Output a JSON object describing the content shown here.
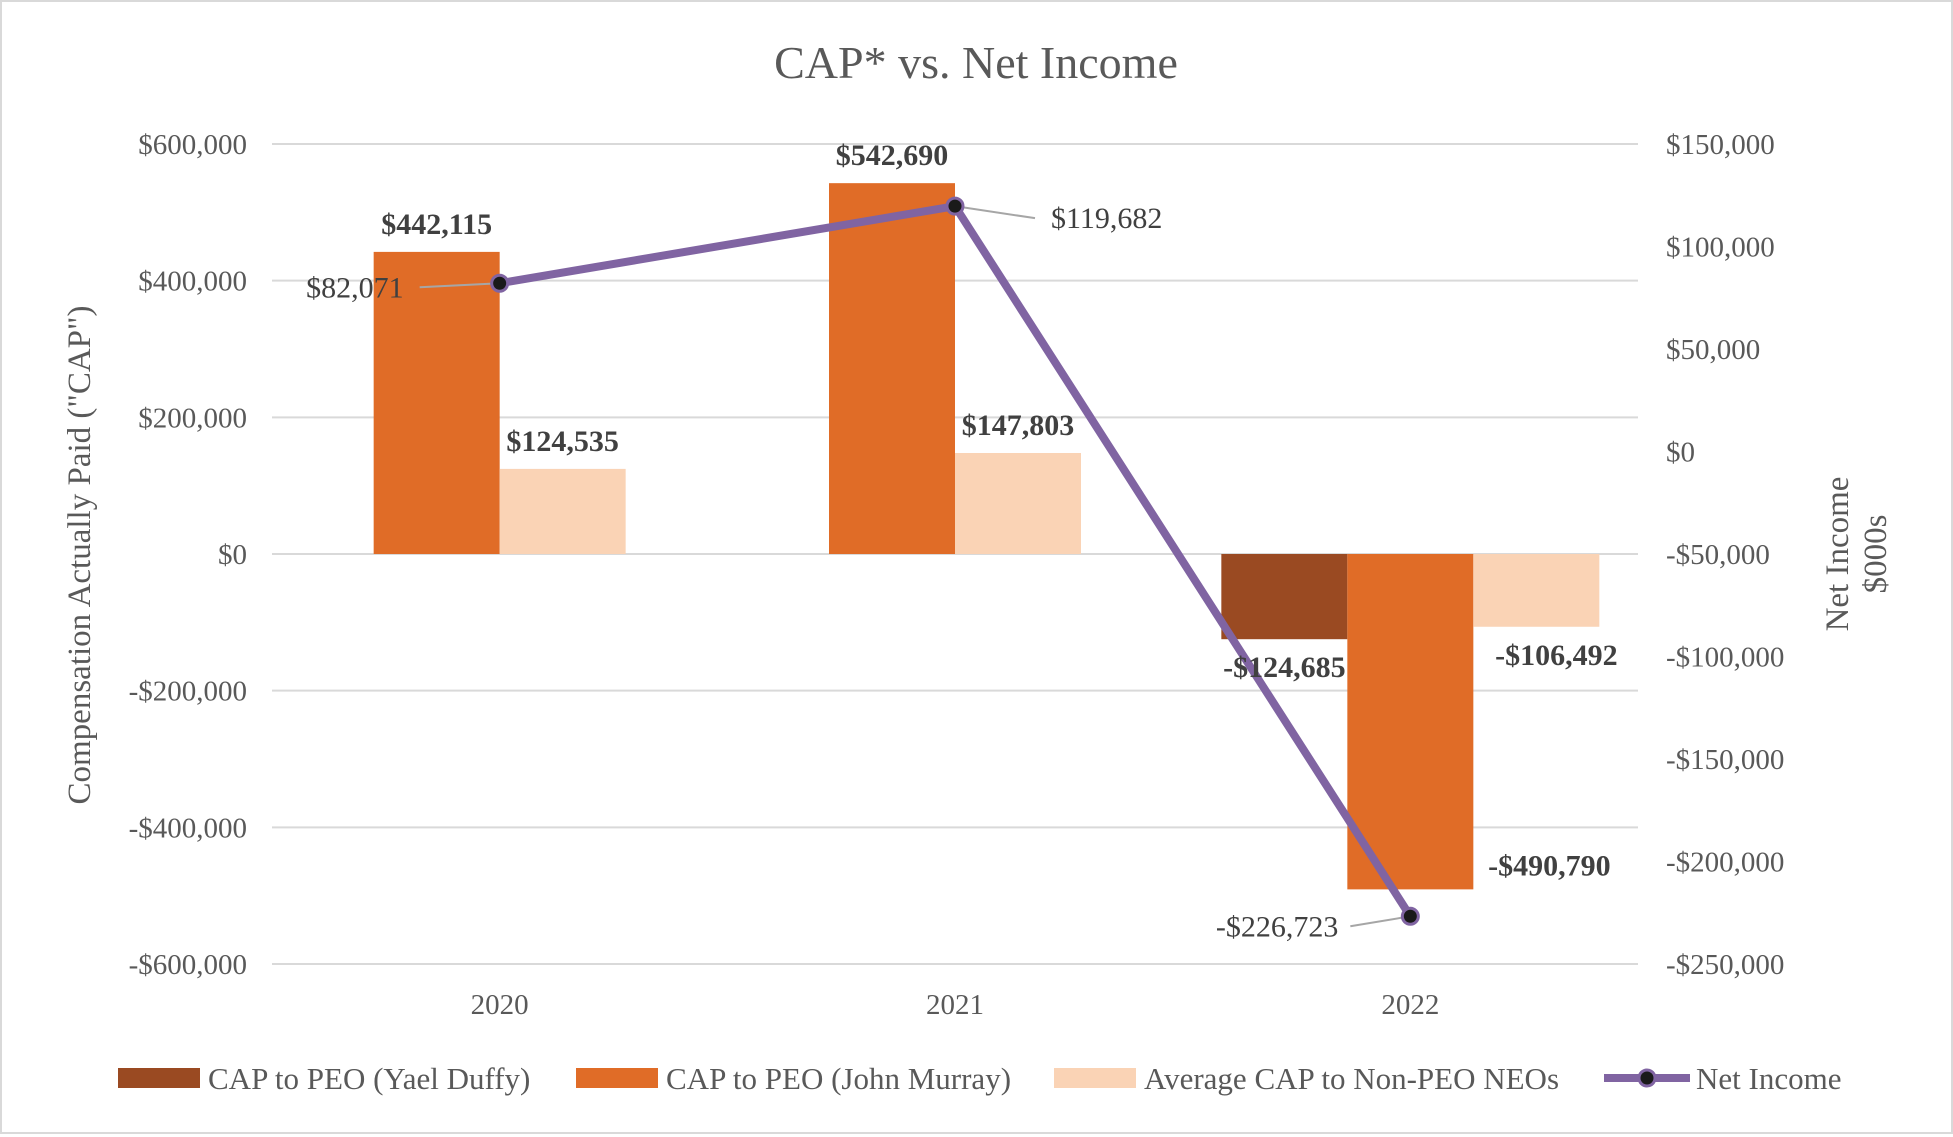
{
  "chart_data": {
    "type": "bar+line",
    "title": "CAP* vs. Net Income",
    "categories": [
      "2020",
      "2021",
      "2022"
    ],
    "y_left": {
      "label": "Compensation Actually Paid (\"CAP\")",
      "range": [
        -600000,
        600000
      ],
      "ticks": [
        600000,
        400000,
        200000,
        0,
        -200000,
        -400000,
        -600000
      ],
      "tick_labels": [
        "$600,000",
        "$400,000",
        "$200,000",
        "$0",
        "-$200,000",
        "-$400,000",
        "-$600,000"
      ]
    },
    "y_right": {
      "label_line1": "Net Income",
      "label_line2": "$000s",
      "range": [
        -250000,
        150000
      ],
      "ticks": [
        150000,
        100000,
        50000,
        0,
        -50000,
        -100000,
        -150000,
        -200000,
        -250000
      ],
      "tick_labels": [
        "$150,000",
        "$100,000",
        "$50,000",
        "$0",
        "-$50,000",
        "-$100,000",
        "-$150,000",
        "-$200,000",
        "-$250,000"
      ]
    },
    "series": [
      {
        "name": "CAP to PEO (Yael Duffy)",
        "type": "bar",
        "axis": "left",
        "color": "#9a4a22",
        "values": [
          null,
          null,
          -124685
        ],
        "labels": [
          "",
          "",
          "-$124,685"
        ]
      },
      {
        "name": "CAP to PEO (John Murray)",
        "type": "bar",
        "axis": "left",
        "color": "#e06c27",
        "values": [
          442115,
          542690,
          -490790
        ],
        "labels": [
          "$442,115",
          "$542,690",
          "-$490,790"
        ]
      },
      {
        "name": "Average CAP to Non-PEO NEOs",
        "type": "bar",
        "axis": "left",
        "color": "#fad3b5",
        "values": [
          124535,
          147803,
          -106492
        ],
        "labels": [
          "$124,535",
          "$147,803",
          "-$106,492"
        ]
      },
      {
        "name": "Net Income",
        "type": "line",
        "axis": "right",
        "color": "#8064a2",
        "values": [
          82071,
          119682,
          -226723
        ],
        "labels": [
          "$82,071",
          "$119,682",
          "-$226,723"
        ]
      }
    ],
    "legend_position": "bottom",
    "grid": true
  }
}
